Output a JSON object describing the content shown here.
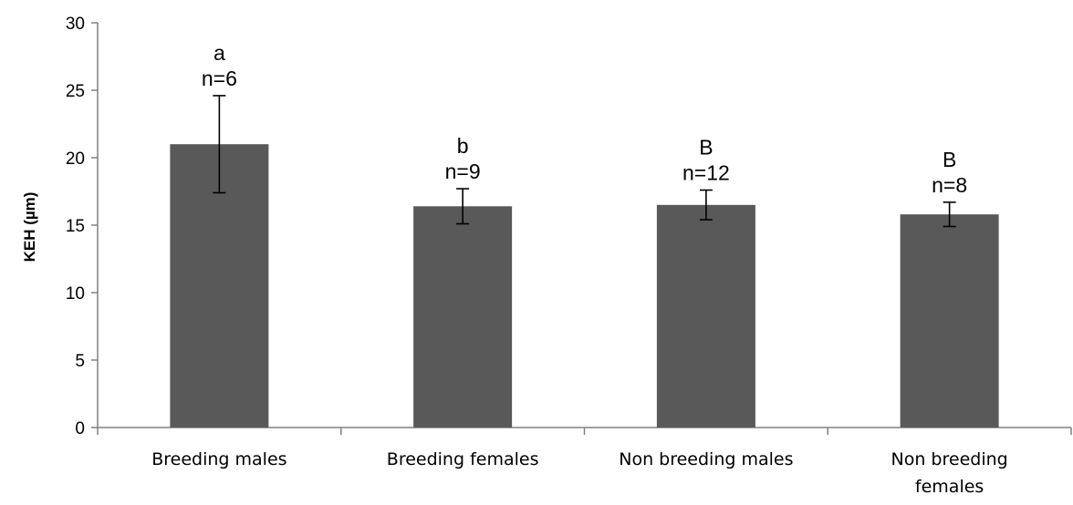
{
  "chart_data": {
    "type": "bar",
    "title": "",
    "xlabel": "",
    "ylabel": "KEH (µm)",
    "ylim": [
      0,
      30
    ],
    "yticks": [
      0,
      5,
      10,
      15,
      20,
      25,
      30
    ],
    "grid": false,
    "categories": [
      [
        "Breeding males"
      ],
      [
        "Breeding females"
      ],
      [
        "Non breeding males"
      ],
      [
        "Non breeding",
        "females"
      ]
    ],
    "values": [
      21,
      16.4,
      16.5,
      15.8
    ],
    "errors": [
      3.6,
      1.3,
      1.1,
      0.9
    ],
    "annotations": [
      [
        "a",
        "n=6"
      ],
      [
        "b",
        "n=9"
      ],
      [
        "B",
        "n=12"
      ],
      [
        "B",
        "n=8"
      ]
    ],
    "bar_color": "#595959"
  }
}
